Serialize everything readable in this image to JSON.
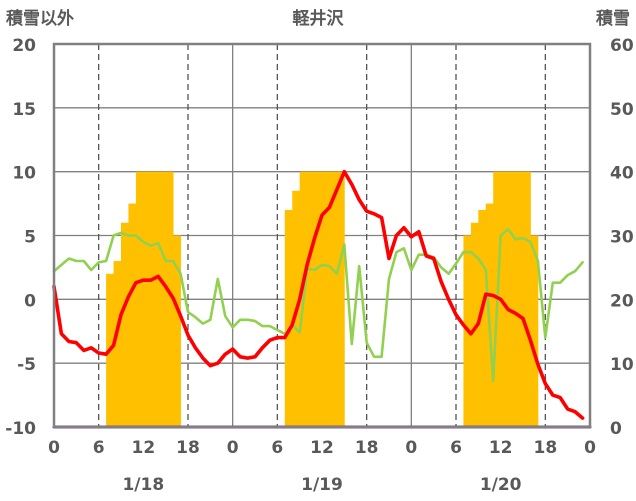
{
  "chart_data": {
    "type": "bar",
    "title": "軽井沢",
    "left_axis": {
      "label": "積雪以外",
      "ylim": [
        -10,
        20
      ],
      "ticks": [
        "20",
        "15",
        "10",
        "5",
        "0",
        "-5",
        "-10"
      ]
    },
    "right_axis": {
      "label": "積雪",
      "ylim": [
        0,
        60
      ],
      "ticks": [
        "60",
        "50",
        "40",
        "30",
        "20",
        "10",
        "0"
      ]
    },
    "x_hour_ticks": [
      "0",
      "6",
      "12",
      "18",
      "0",
      "6",
      "12",
      "18",
      "0",
      "6",
      "12",
      "18",
      "0"
    ],
    "x_day_labels": [
      "1/18",
      "1/19",
      "1/20"
    ],
    "x_range_hours": [
      0,
      72
    ],
    "grid": "dashed at 6 and 18 h, solid at midnights",
    "colors": {
      "snow": "#FFC000",
      "red_line": "#FF0000",
      "green_line": "#92D050",
      "purple_line": "#7030A0",
      "frame": "#808080"
    },
    "snow_depth": {
      "hours": [
        7.5,
        8.5,
        9.5,
        10.5,
        11.5,
        12.5,
        13.5,
        14.5,
        15.5,
        16.5,
        31.5,
        32.5,
        33.5,
        34.5,
        35.5,
        36.5,
        37.5,
        38.5,
        55.5,
        56.5,
        57.5,
        58.5,
        59.5,
        60.5,
        61.5,
        62.5,
        63.5,
        64.5
      ],
      "values": [
        24,
        26,
        32,
        35,
        40,
        40,
        40,
        40,
        40,
        30,
        34,
        37,
        40,
        40,
        40,
        40,
        40,
        40,
        30,
        32,
        34,
        35,
        40,
        40,
        40,
        40,
        40,
        30
      ]
    },
    "red_series": {
      "hours": [
        0,
        1,
        2,
        3,
        4,
        5,
        6,
        7,
        8,
        9,
        10,
        11,
        12,
        13,
        14,
        15,
        16,
        17,
        18,
        19,
        20,
        21,
        22,
        23,
        24,
        25,
        26,
        27,
        28,
        29,
        30,
        31,
        32,
        33,
        34,
        35,
        36,
        37,
        38,
        39,
        40,
        41,
        42,
        43,
        44,
        45,
        46,
        47,
        48,
        49,
        50,
        51,
        52,
        53,
        54,
        55,
        56,
        57,
        58,
        59,
        60,
        61,
        62,
        63,
        64,
        65,
        66,
        67,
        68,
        69,
        70,
        71
      ],
      "values": [
        1.0,
        -2.7,
        -3.3,
        -3.4,
        -4.0,
        -3.8,
        -4.2,
        -4.3,
        -3.6,
        -1.2,
        0.2,
        1.3,
        1.5,
        1.5,
        1.8,
        1.0,
        0.1,
        -1.3,
        -2.8,
        -3.8,
        -4.6,
        -5.2,
        -5.0,
        -4.3,
        -3.9,
        -4.5,
        -4.6,
        -4.5,
        -3.8,
        -3.2,
        -3.0,
        -3.0,
        -2.0,
        0.0,
        2.7,
        4.8,
        6.6,
        7.2,
        8.6,
        10.0,
        9.0,
        7.8,
        6.9,
        6.7,
        6.4,
        3.2,
        5.0,
        5.6,
        4.9,
        5.3,
        3.4,
        3.2,
        1.4,
        0.0,
        -1.2,
        -2.0,
        -2.7,
        -1.9,
        0.4,
        0.3,
        0.0,
        -0.8,
        -1.1,
        -1.5,
        -3.2,
        -5.1,
        -6.6,
        -7.5,
        -7.7,
        -8.6,
        -8.8,
        -9.3
      ]
    },
    "green_series": {
      "hours": [
        0,
        1,
        2,
        3,
        4,
        5,
        6,
        7,
        8,
        9,
        10,
        11,
        12,
        13,
        14,
        15,
        16,
        17,
        18,
        19,
        20,
        21,
        22,
        23,
        24,
        25,
        26,
        27,
        28,
        29,
        30,
        31,
        32,
        33,
        34,
        35,
        36,
        37,
        38,
        39,
        40,
        41,
        42,
        43,
        44,
        45,
        46,
        47,
        48,
        49,
        50,
        51,
        52,
        53,
        54,
        55,
        56,
        57,
        58,
        59,
        60,
        61,
        62,
        63,
        64,
        65,
        66,
        67,
        68,
        69,
        70,
        71,
        72
      ],
      "values": [
        2.2,
        2.7,
        3.2,
        3.0,
        3.0,
        2.3,
        2.9,
        3.0,
        5.0,
        5.2,
        5.0,
        5.0,
        4.5,
        4.2,
        4.4,
        3.0,
        3.0,
        2.0,
        -1.0,
        -1.4,
        -1.9,
        -1.6,
        1.6,
        -1.3,
        -2.2,
        -1.6,
        -1.6,
        -1.7,
        -2.1,
        -2.1,
        -2.4,
        -2.7,
        -2.0,
        -2.6,
        2.4,
        2.3,
        2.7,
        2.6,
        2.0,
        4.3,
        -3.5,
        2.6,
        -3.4,
        -4.5,
        -4.5,
        1.6,
        3.7,
        4.0,
        2.3,
        3.5,
        3.5,
        3.3,
        2.5,
        2.0,
        2.8,
        3.7,
        3.7,
        3.2,
        2.3,
        -6.4,
        5.0,
        5.5,
        4.7,
        4.8,
        4.5,
        3.0,
        -3.0,
        1.3,
        1.3,
        1.9,
        2.2,
        2.9,
        null
      ]
    },
    "purple_series": {
      "hours": [
        0,
        72
      ],
      "values": [
        -10,
        -10
      ]
    }
  }
}
